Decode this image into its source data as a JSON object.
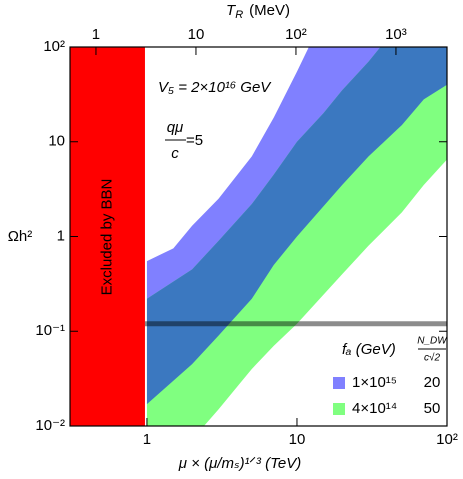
{
  "chart_data": {
    "type": "band",
    "xlabel": "μ × (μ/mₛ)¹ᐟ³   (TeV)",
    "ylabel": "Ωh²",
    "x2label": {
      "symbol": "T",
      "sub": "R",
      "unit": "(MeV)"
    },
    "xscale": "log",
    "yscale": "log",
    "xlim": [
      0.307,
      100
    ],
    "ylim": [
      0.01,
      100
    ],
    "x2lim": [
      0.55,
      3240
    ],
    "xticks": [
      1,
      10,
      {
        "value": 100,
        "label": "10²"
      }
    ],
    "yticks": [
      {
        "value": 0.01,
        "label": "10⁻²"
      },
      {
        "value": 0.1,
        "label": "10⁻¹"
      },
      1,
      10,
      {
        "value": 100,
        "label": "10²"
      }
    ],
    "x2ticks": [
      1,
      10,
      {
        "value": 100,
        "label": "10²"
      },
      {
        "value": 1000,
        "label": "10³"
      }
    ],
    "excluded_region": {
      "label": "Excluded by BBN",
      "xmax": 0.97,
      "color": "#ff0000"
    },
    "reference_line": {
      "y": 0.12,
      "color": "#000000",
      "opacity": 0.45
    },
    "annotations": {
      "v5": "V₅ = 2×10¹⁶ GeV",
      "ratio_num": "qμ",
      "ratio_den": "c",
      "ratio_rhs": "=5"
    },
    "legend_header": {
      "fa": "fₐ (GeV)",
      "ndw_num": "N_DW",
      "ndw_den": "c√2"
    },
    "overlap_color": "#3b78c0",
    "series": [
      {
        "name": "1×10¹⁵",
        "ndw": "20",
        "color": "#8080ff",
        "upper": {
          "x": [
            1,
            1.5,
            2,
            3,
            5,
            7,
            10,
            12
          ],
          "values": [
            0.55,
            0.75,
            1.3,
            2.5,
            7,
            18,
            55,
            100
          ]
        },
        "lower": {
          "x": [
            1,
            2,
            3,
            5,
            7,
            10,
            20,
            30,
            50,
            70,
            100
          ],
          "values": [
            0.017,
            0.045,
            0.09,
            0.22,
            0.5,
            1.0,
            3.5,
            7,
            15,
            28,
            40
          ]
        }
      },
      {
        "name": "4×10¹⁴",
        "ndw": "50",
        "color": "#80ff80",
        "upper": {
          "x": [
            1,
            2,
            3,
            5,
            7,
            10,
            15,
            20,
            30,
            36
          ],
          "values": [
            0.22,
            0.45,
            0.9,
            2.2,
            4.5,
            10,
            20,
            35,
            70,
            100
          ]
        },
        "lower": {
          "x": [
            2.4,
            3,
            5,
            7,
            10,
            20,
            30,
            50,
            70,
            100
          ],
          "values": [
            0.01,
            0.015,
            0.04,
            0.07,
            0.12,
            0.4,
            0.8,
            1.8,
            3.5,
            6.5
          ]
        }
      }
    ]
  }
}
